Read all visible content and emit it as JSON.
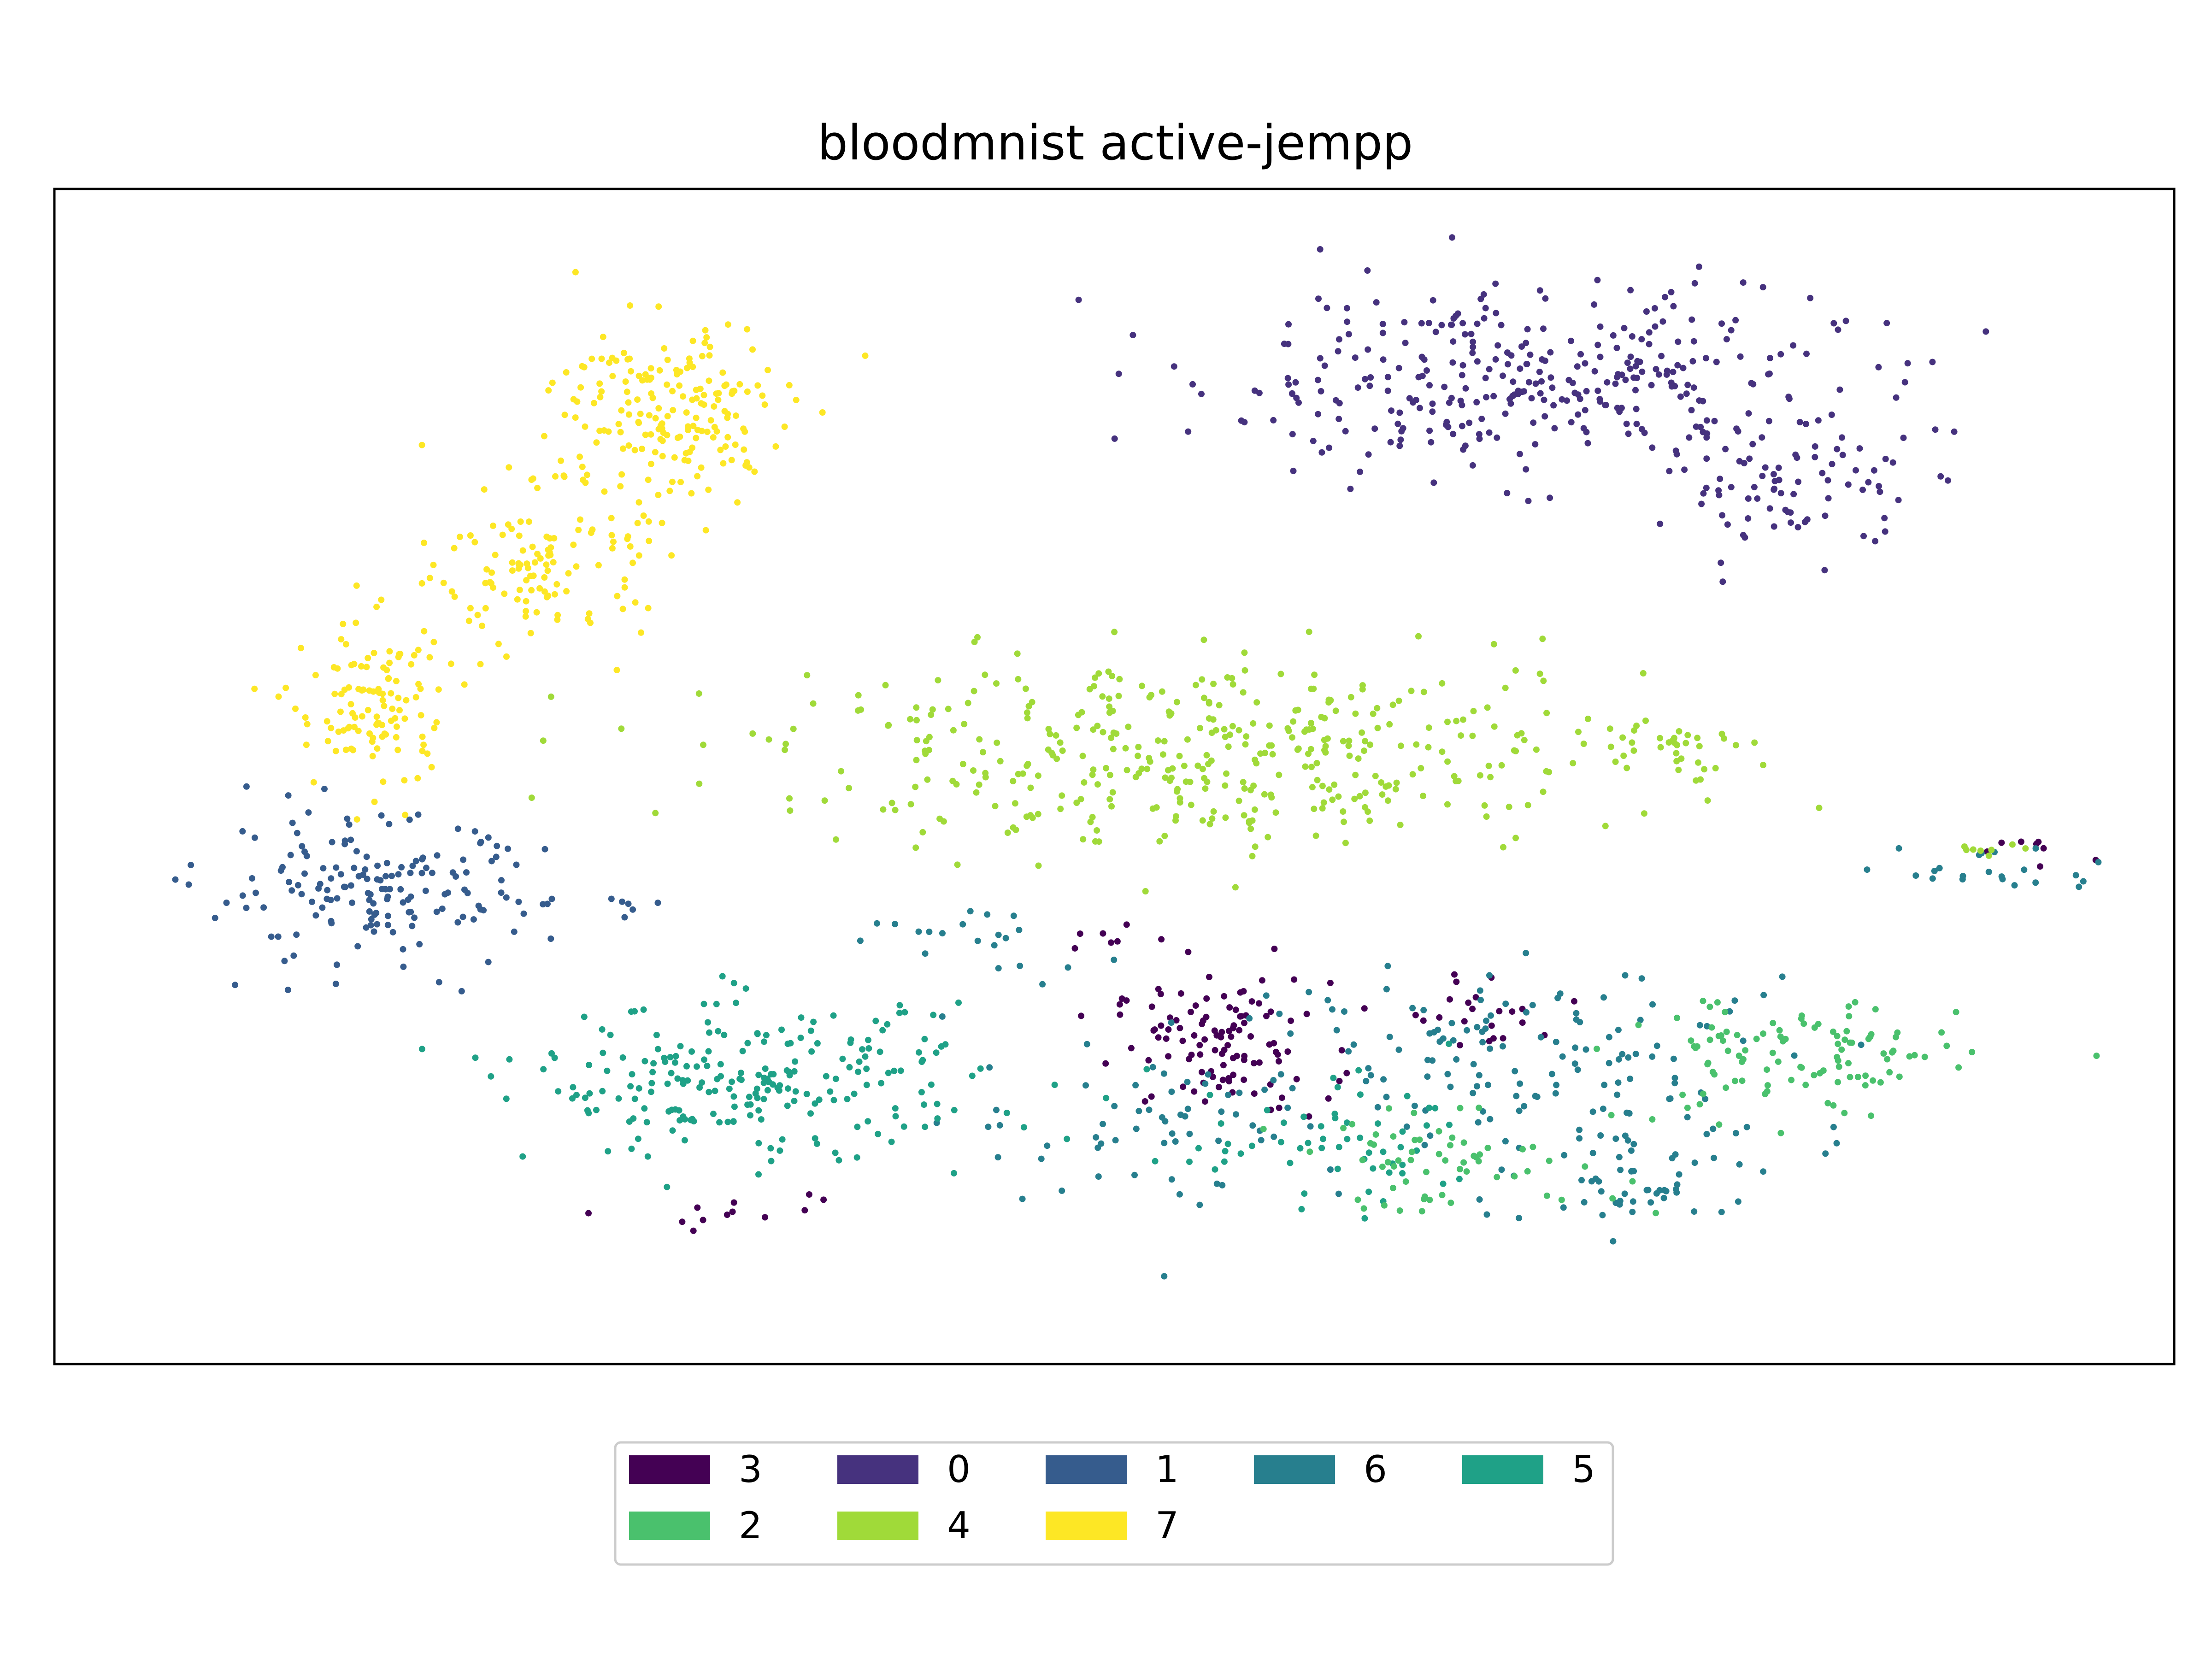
{
  "chart_data": {
    "type": "scatter",
    "title": "bloodmnist active-jempp",
    "xlabel": "",
    "ylabel": "",
    "axis_ticks": false,
    "grid": false,
    "xlim": [
      0,
      100
    ],
    "ylim": [
      0,
      100
    ],
    "legend": {
      "placement": "bottom-center",
      "ncol": 5,
      "entries": [
        "3",
        "0",
        "1",
        "6",
        "5",
        "2",
        "4",
        "7"
      ]
    },
    "series": [
      {
        "name": "3",
        "color": "#440154",
        "clusters": [
          {
            "cx": 55,
            "cy": 27,
            "sx": 3.2,
            "sy": 3.5,
            "n": 110
          },
          {
            "cx": 68,
            "cy": 30,
            "sx": 2.5,
            "sy": 2.0,
            "n": 22
          },
          {
            "cx": 33,
            "cy": 13,
            "sx": 3.0,
            "sy": 1.5,
            "n": 12
          },
          {
            "cx": 94,
            "cy": 44,
            "sx": 2.0,
            "sy": 1.0,
            "n": 8
          },
          {
            "cx": 50,
            "cy": 36,
            "sx": 3.0,
            "sy": 1.0,
            "n": 8
          }
        ]
      },
      {
        "name": "0",
        "color": "#46327e",
        "clusters": [
          {
            "cx": 69,
            "cy": 84,
            "sx": 9.5,
            "sy": 5.0,
            "n": 330
          },
          {
            "cx": 82,
            "cy": 75,
            "sx": 3.5,
            "sy": 3.5,
            "n": 85
          }
        ]
      },
      {
        "name": "1",
        "color": "#365c8d",
        "clusters": [
          {
            "cx": 15,
            "cy": 40,
            "sx": 5.0,
            "sy": 4.0,
            "n": 165
          },
          {
            "cx": 27,
            "cy": 39,
            "sx": 1.0,
            "sy": 0.5,
            "n": 6
          }
        ]
      },
      {
        "name": "6",
        "color": "#277f8e",
        "clusters": [
          {
            "cx": 70,
            "cy": 26,
            "sx": 9.0,
            "sy": 5.0,
            "n": 140
          },
          {
            "cx": 52,
            "cy": 21,
            "sx": 6.0,
            "sy": 5.0,
            "n": 60
          },
          {
            "cx": 75,
            "cy": 16,
            "sx": 4.5,
            "sy": 3.0,
            "n": 55
          },
          {
            "cx": 92,
            "cy": 42,
            "sx": 3.0,
            "sy": 1.5,
            "n": 22
          },
          {
            "cx": 43,
            "cy": 36,
            "sx": 4.0,
            "sy": 2.0,
            "n": 20
          }
        ]
      },
      {
        "name": "5",
        "color": "#1fa187",
        "clusters": [
          {
            "cx": 33,
            "cy": 24,
            "sx": 6.5,
            "sy": 4.0,
            "n": 230
          },
          {
            "cx": 60,
            "cy": 18,
            "sx": 6.0,
            "sy": 3.5,
            "n": 60
          }
        ]
      },
      {
        "name": "2",
        "color": "#4ac16d",
        "clusters": [
          {
            "cx": 82,
            "cy": 26,
            "sx": 5.0,
            "sy": 3.5,
            "n": 110
          },
          {
            "cx": 66,
            "cy": 17,
            "sx": 5.0,
            "sy": 2.5,
            "n": 60
          }
        ]
      },
      {
        "name": "4",
        "color": "#a0da39",
        "clusters": [
          {
            "cx": 55,
            "cy": 52,
            "sx": 13.0,
            "sy": 5.0,
            "n": 420
          },
          {
            "cx": 76,
            "cy": 53,
            "sx": 2.0,
            "sy": 1.5,
            "n": 25
          },
          {
            "cx": 91,
            "cy": 44,
            "sx": 1.0,
            "sy": 0.6,
            "n": 8
          }
        ]
      },
      {
        "name": "7",
        "color": "#fde725",
        "clusters": [
          {
            "cx": 29,
            "cy": 81,
            "sx": 3.5,
            "sy": 5.0,
            "n": 190
          },
          {
            "cx": 23,
            "cy": 68,
            "sx": 3.0,
            "sy": 4.0,
            "n": 120
          },
          {
            "cx": 15,
            "cy": 56,
            "sx": 2.3,
            "sy": 5.0,
            "n": 120
          }
        ]
      }
    ]
  }
}
